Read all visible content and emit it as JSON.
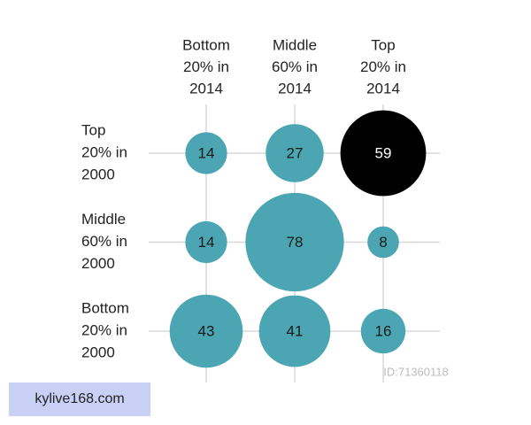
{
  "chart_data": {
    "type": "bubble",
    "columns": [
      [
        "Bottom",
        "20% in",
        "2014"
      ],
      [
        "Middle",
        "60% in",
        "2014"
      ],
      [
        "Top",
        "20% in",
        "2014"
      ]
    ],
    "rows": [
      [
        "Top",
        "20% in",
        "2000"
      ],
      [
        "Middle",
        "60% in",
        "2000"
      ],
      [
        "Bottom",
        "20% in",
        "2000"
      ]
    ],
    "values": [
      [
        14,
        27,
        59
      ],
      [
        14,
        78,
        8
      ],
      [
        43,
        41,
        16
      ]
    ],
    "colors": [
      [
        "#4ba5b2",
        "#4ba5b2",
        "#000000"
      ],
      [
        "#4ba5b2",
        "#4ba5b2",
        "#4ba5b2"
      ],
      [
        "#4ba5b2",
        "#4ba5b2",
        "#4ba5b2"
      ]
    ],
    "grid": true
  },
  "watermark": "ID:71360118",
  "source_label": "kylive168.com"
}
